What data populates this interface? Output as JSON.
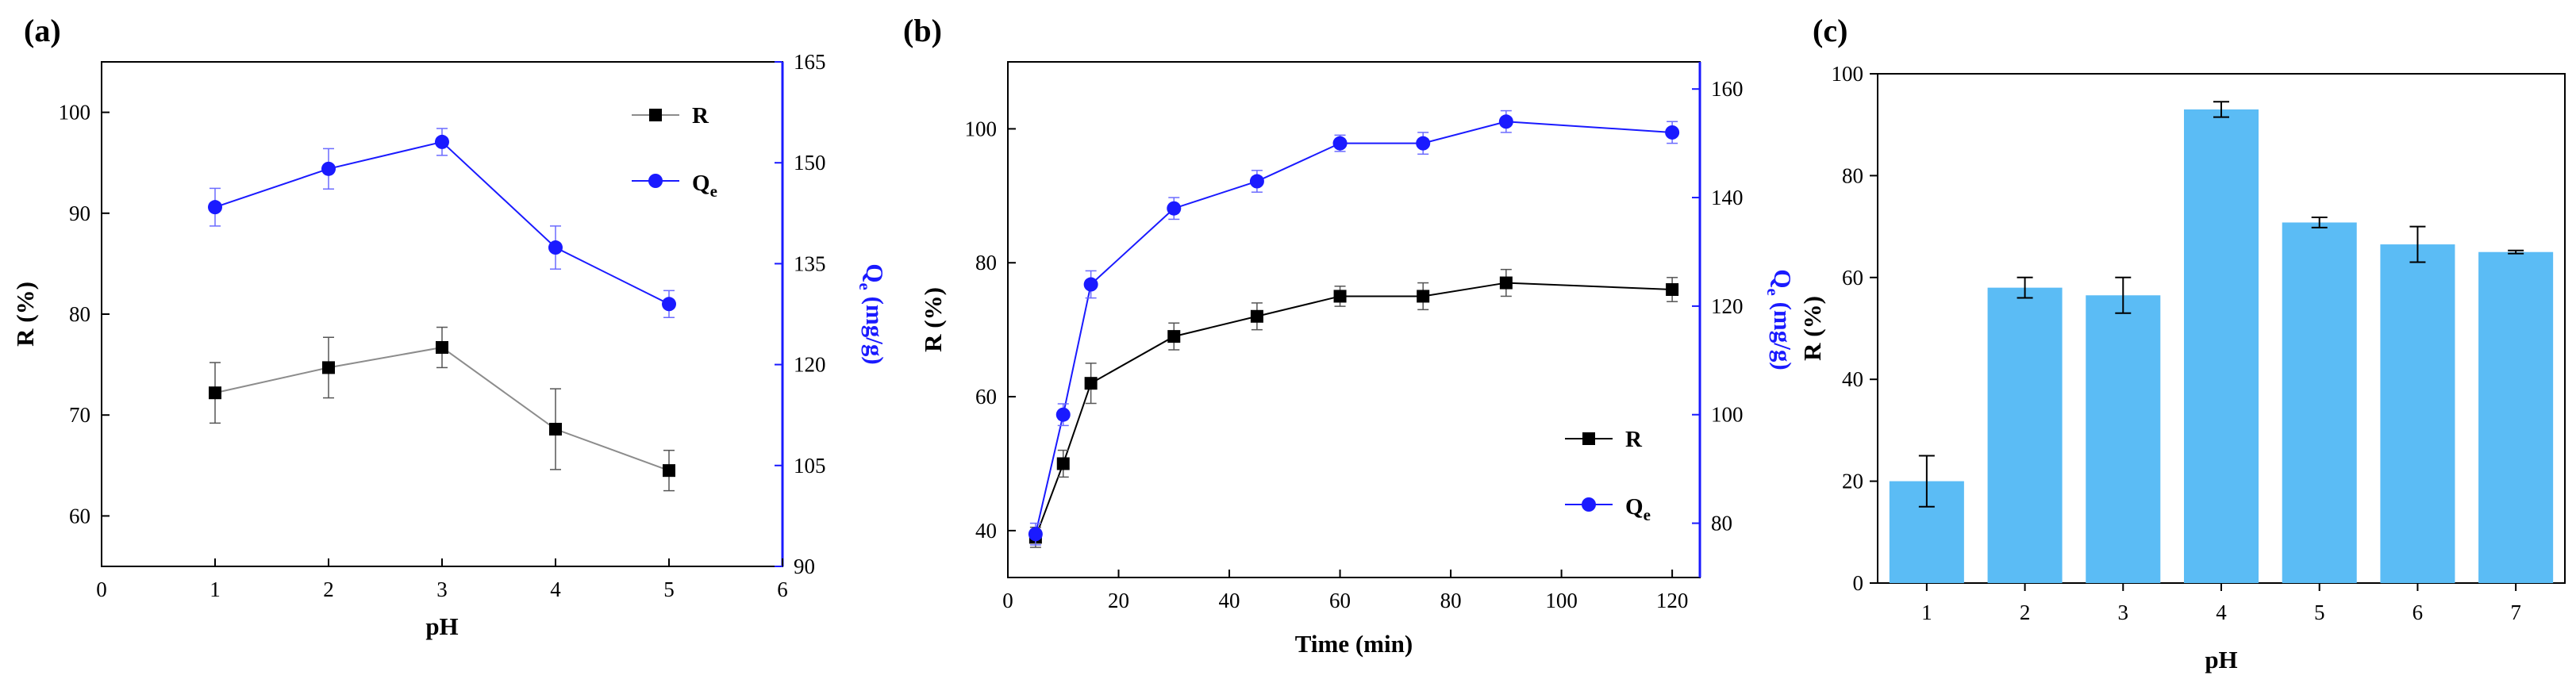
{
  "colors": {
    "black": "#000000",
    "grey": "#8c8c8c",
    "blue": "#1a1aff",
    "bar": "#5bbcf5"
  },
  "chart_data": [
    {
      "panel": "(a)",
      "type": "line",
      "x": [
        1,
        2,
        3,
        4,
        5
      ],
      "xlabel": "pH",
      "xlim": [
        0,
        6
      ],
      "xticks": [
        "0",
        "1",
        "2",
        "3",
        "4",
        "5",
        "6"
      ],
      "ylabel": "R (%)",
      "ylim": [
        55,
        105
      ],
      "yticks": [
        "60",
        "70",
        "80",
        "90",
        "100"
      ],
      "y2label": {
        "main": "Q",
        "sub": "e",
        "unit": " (mg/g)"
      },
      "y2lim": [
        90,
        165
      ],
      "y2ticks": [
        "90",
        "105",
        "120",
        "135",
        "150",
        "165"
      ],
      "series": [
        {
          "name": "R",
          "axis": "left",
          "values": [
            72.2,
            74.7,
            76.7,
            68.6,
            64.5
          ],
          "errors": [
            3.0,
            3.0,
            2.0,
            4.0,
            2.0
          ]
        },
        {
          "name": "Qe",
          "axis": "right",
          "values": [
            143.4,
            149.1,
            153.1,
            137.4,
            129.0
          ],
          "errors": [
            2.8,
            3.0,
            2.0,
            3.2,
            2.0
          ]
        }
      ],
      "legend": [
        {
          "main": "R",
          "sub": ""
        },
        {
          "main": "Q",
          "sub": "e"
        }
      ],
      "legend_position": "top-right"
    },
    {
      "panel": "(b)",
      "type": "line",
      "x": [
        5,
        10,
        15,
        30,
        45,
        60,
        75,
        90,
        120
      ],
      "xlabel": "Time (min)",
      "xlim": [
        0,
        125
      ],
      "xticks": [
        "0",
        "20",
        "40",
        "60",
        "80",
        "100",
        "120"
      ],
      "ylabel": "R (%)",
      "ylim": [
        33,
        110
      ],
      "yticks": [
        "40",
        "60",
        "80",
        "100"
      ],
      "y2label": {
        "main": "Q",
        "sub": "e",
        "unit": " (mg/g)"
      },
      "y2lim": [
        70,
        165
      ],
      "y2ticks": [
        "80",
        "100",
        "120",
        "140",
        "160"
      ],
      "series": [
        {
          "name": "R",
          "axis": "left",
          "values": [
            39,
            50,
            62,
            69,
            72,
            75,
            75,
            77,
            76
          ],
          "errors": [
            1.5,
            2.0,
            3.0,
            2.0,
            2.0,
            1.5,
            2.0,
            2.0,
            1.8
          ]
        },
        {
          "name": "Qe",
          "axis": "right",
          "values": [
            78,
            100,
            124,
            138,
            143,
            150,
            150,
            154,
            152
          ],
          "errors": [
            2.0,
            2.0,
            2.5,
            2.0,
            2.0,
            1.5,
            2.0,
            2.0,
            2.0
          ]
        }
      ],
      "legend": [
        {
          "main": "R",
          "sub": ""
        },
        {
          "main": "Q",
          "sub": "e"
        }
      ],
      "legend_position": "bottom-right"
    },
    {
      "panel": "(c)",
      "type": "bar",
      "categories": [
        "1",
        "2",
        "3",
        "4",
        "5",
        "6",
        "7"
      ],
      "values": [
        20,
        58,
        56.5,
        93,
        70.8,
        66.5,
        65
      ],
      "errors": [
        5,
        2,
        3.5,
        1.5,
        1,
        3.5,
        0.3
      ],
      "xlabel": "pH",
      "ylabel": "R (%)",
      "ylim": [
        0,
        100
      ],
      "yticks": [
        "0",
        "20",
        "40",
        "60",
        "80",
        "100"
      ]
    }
  ]
}
